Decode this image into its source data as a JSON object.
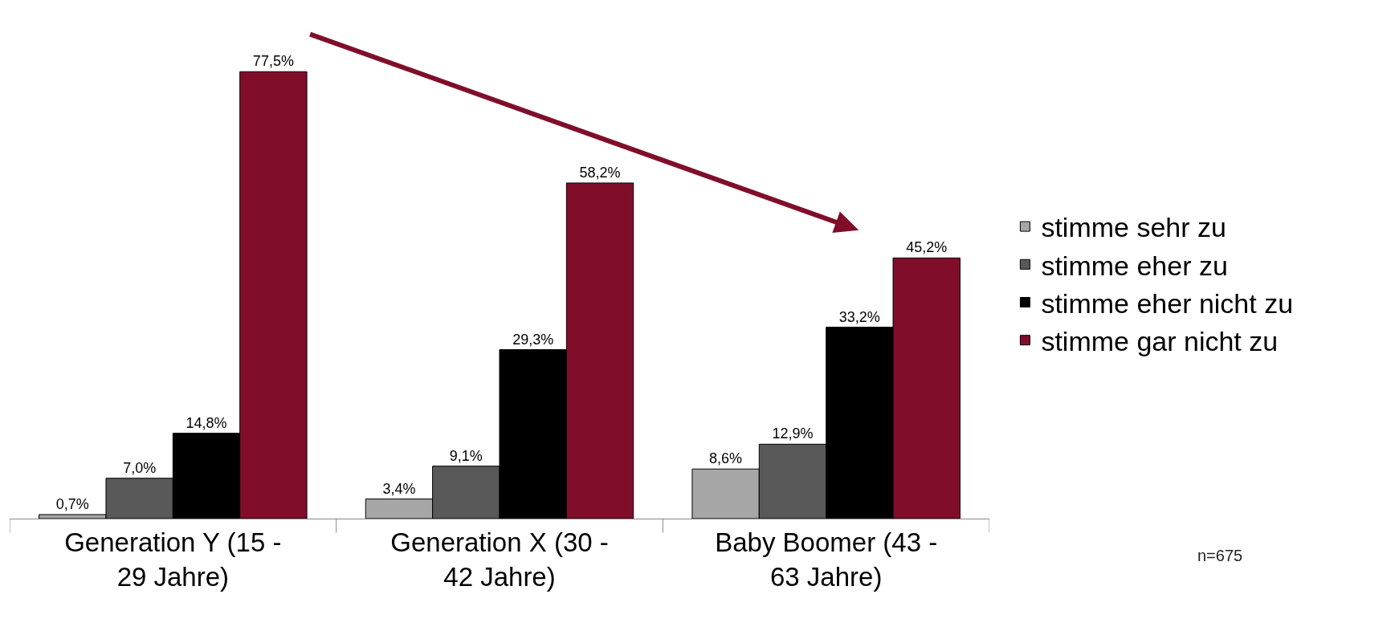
{
  "chart_data": {
    "type": "bar",
    "categories": [
      "Generation Y (15 - 29 Jahre)",
      "Generation X (30 - 42 Jahre)",
      "Baby Boomer (43 - 63 Jahre)"
    ],
    "series": [
      {
        "name": "stimme sehr zu",
        "color": "#a6a6a6",
        "values": [
          0.7,
          3.4,
          8.6
        ],
        "value_labels": [
          "0,7%",
          "3,4%",
          "8,6%"
        ]
      },
      {
        "name": "stimme eher zu",
        "color": "#595959",
        "values": [
          7.0,
          9.1,
          12.9
        ],
        "value_labels": [
          "7,0%",
          "9,1%",
          "12,9%"
        ]
      },
      {
        "name": "stimme eher nicht zu",
        "color": "#000000",
        "values": [
          14.8,
          29.3,
          33.2
        ],
        "value_labels": [
          "14,8%",
          "29,3%",
          "33,2%"
        ]
      },
      {
        "name": "stimme gar nicht zu",
        "color": "#800e2a",
        "values": [
          77.5,
          58.2,
          45.2
        ],
        "value_labels": [
          "77,5%",
          "58,2%",
          "45,2%"
        ]
      }
    ],
    "legend": "right",
    "grid": false,
    "tick_labels": "x",
    "annotations": [
      "n=675"
    ]
  }
}
